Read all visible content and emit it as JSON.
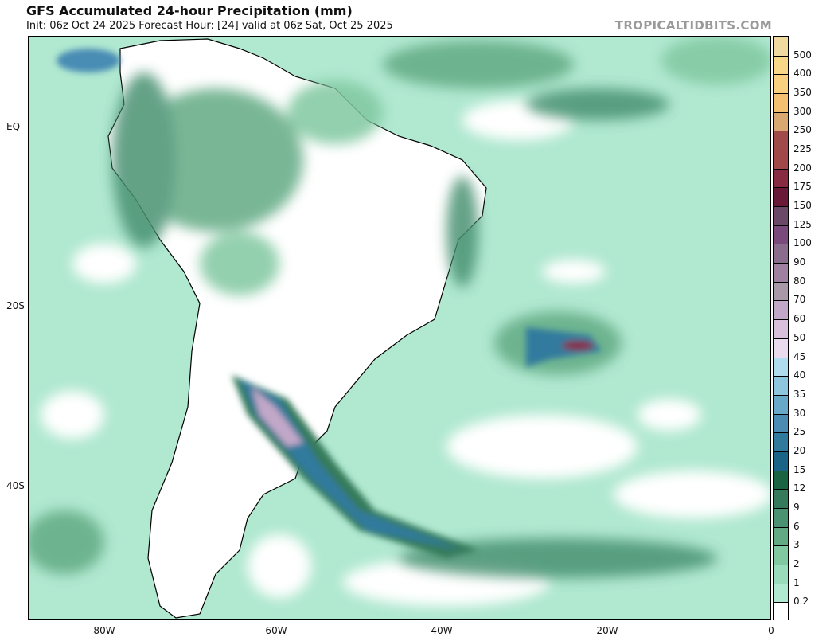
{
  "header": {
    "title": "GFS Accumulated 24-hour Precipitation (mm)",
    "subtitle": "Init: 06z Oct 24 2025   Forecast Hour: [24]   valid at 06z Sat, Oct 25 2025",
    "watermark": "TROPICALTIDBITS.COM"
  },
  "map": {
    "region": "South America and South Atlantic",
    "lat_labels": [
      "EQ",
      "20S",
      "40S"
    ],
    "lon_labels": [
      "80W",
      "60W",
      "40W",
      "20W",
      "0"
    ],
    "ocean_base_color": "#b0e8d0",
    "land_outline_color": "#000000"
  },
  "colorbar": {
    "labels": [
      "0.2",
      "1",
      "2",
      "3",
      "6",
      "9",
      "12",
      "15",
      "20",
      "25",
      "30",
      "35",
      "40",
      "45",
      "50",
      "60",
      "70",
      "80",
      "90",
      "100",
      "125",
      "150",
      "175",
      "200",
      "225",
      "250",
      "300",
      "350",
      "400",
      "500"
    ],
    "colors": [
      "#ffffff",
      "#b0e8d0",
      "#98dcbc",
      "#80c8a0",
      "#62aa84",
      "#4a9272",
      "#357a5a",
      "#1b6442",
      "#1a6488",
      "#307a9e",
      "#4a8cb4",
      "#68a8c8",
      "#8ec6e0",
      "#b0dcf0",
      "#eadaee",
      "#d8c0dc",
      "#c2a8c8",
      "#a898a8",
      "#a080a0",
      "#8a6c8c",
      "#7a4a7c",
      "#6c4868",
      "#6a1838",
      "#882a42",
      "#a24848",
      "#a04a4a",
      "#d8a870",
      "#f2c070",
      "#f8d080",
      "#f8d888",
      "#f0daa0"
    ]
  }
}
